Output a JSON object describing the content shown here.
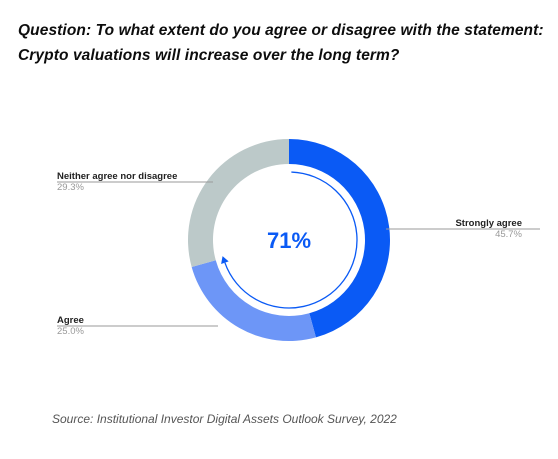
{
  "question": {
    "line1": "Question: To what extent do you agree or disagree with the statement:",
    "line2": "Crypto valuations will increase over the long term?"
  },
  "source": "Source: Institutional Investor Digital Assets Outlook Survey, 2022",
  "chart_data": {
    "type": "pie",
    "variant": "donut",
    "title": "",
    "center_label": "71%",
    "slices": [
      {
        "name": "Strongly agree",
        "value": 45.7,
        "value_label": "45.7%",
        "color": "#0a5af5"
      },
      {
        "name": "Agree",
        "value": 25.0,
        "value_label": "25.0%",
        "color": "#6d96f7"
      },
      {
        "name": "Neither agree nor disagree",
        "value": 29.3,
        "value_label": "29.3%",
        "color": "#bcc9c9"
      }
    ],
    "start": "top",
    "direction": "clockwise",
    "highlight_arc": {
      "covers": [
        "Strongly agree",
        "Agree"
      ],
      "value": 70.7,
      "color": "#0a5af5",
      "arrow": "end"
    }
  }
}
